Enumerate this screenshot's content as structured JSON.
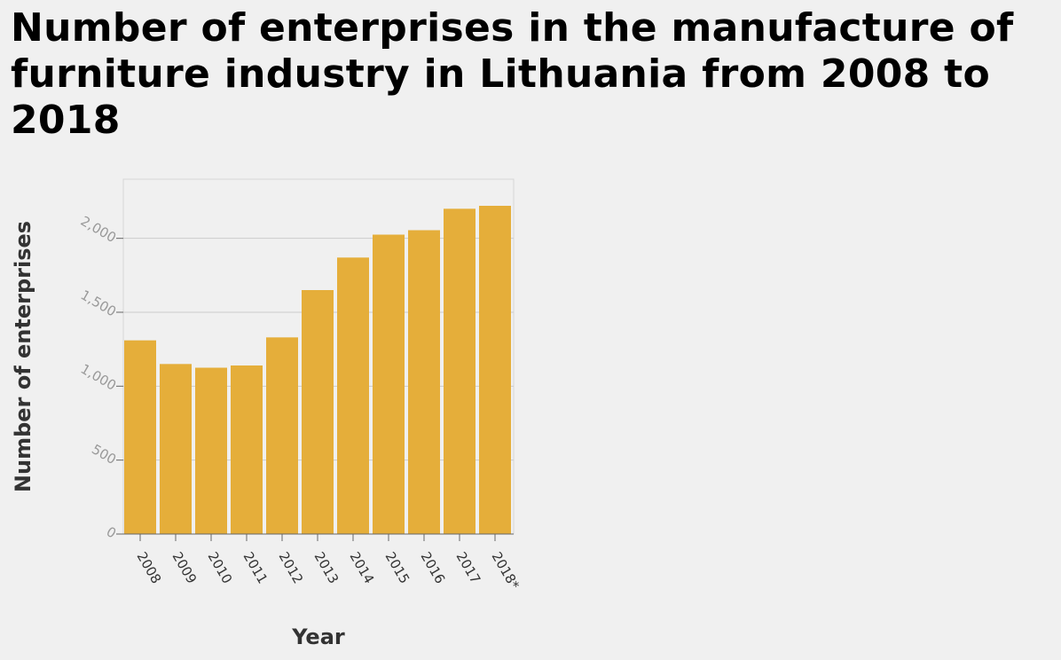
{
  "chart_data": {
    "type": "bar",
    "title": "Number of enterprises in the manufacture of furniture industry in Lithuania from 2008 to 2018",
    "xlabel": "Year",
    "ylabel": "Number of enterprises",
    "categories": [
      "2008",
      "2009",
      "2010",
      "2011",
      "2012",
      "2013",
      "2014",
      "2015",
      "2016",
      "2017",
      "2018*"
    ],
    "values": [
      1310,
      1150,
      1125,
      1140,
      1330,
      1650,
      1870,
      2025,
      2055,
      2200,
      2220
    ],
    "yticks": [
      0,
      500,
      1000,
      1500,
      2000
    ],
    "ytick_labels": [
      "0",
      "500",
      "1,000",
      "1,500",
      "2,000"
    ],
    "ylim": [
      0,
      2400
    ],
    "grid": true,
    "bar_color": "#e5ae3a",
    "grid_color": "#cccccc",
    "background": "#f0f0f0"
  }
}
